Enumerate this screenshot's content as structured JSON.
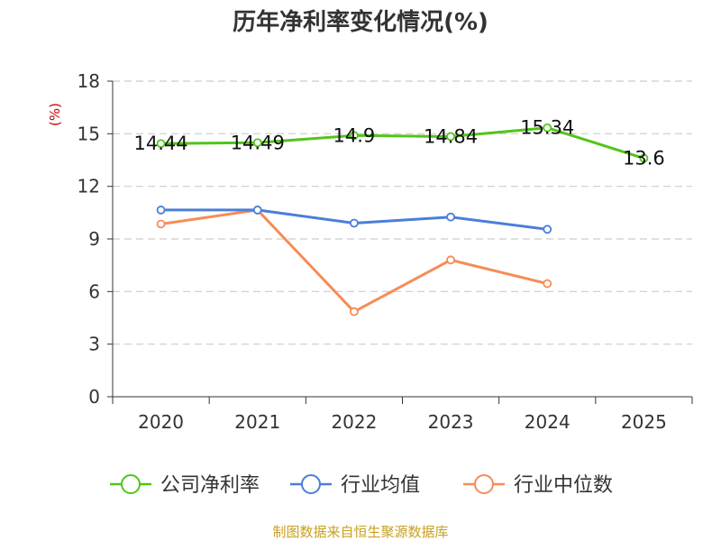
{
  "chart_data": {
    "type": "line",
    "title": "历年净利率变化情况(%)",
    "ylabel": "(%)",
    "xlabel": "",
    "ylim": [
      0,
      18
    ],
    "yticks": [
      0,
      3,
      6,
      9,
      12,
      15,
      18
    ],
    "categories": [
      "2020",
      "2021",
      "2022",
      "2023",
      "2024",
      "2025"
    ],
    "grid": true,
    "legend_position": "bottom",
    "series": [
      {
        "name": "公司净利率",
        "color": "#52c41a",
        "values": [
          14.44,
          14.49,
          14.9,
          14.84,
          15.34,
          13.6
        ],
        "labels": [
          "14.44",
          "14.49",
          "14.9",
          "14.84",
          "15.34",
          "13.6"
        ]
      },
      {
        "name": "行业均值",
        "color": "#4a7fd8",
        "values": [
          10.65,
          10.65,
          9.9,
          10.25,
          9.55,
          null
        ]
      },
      {
        "name": "行业中位数",
        "color": "#f68c57",
        "values": [
          9.85,
          10.65,
          4.85,
          7.8,
          6.45,
          null
        ]
      }
    ],
    "source": "制图数据来自恒生聚源数据库"
  }
}
